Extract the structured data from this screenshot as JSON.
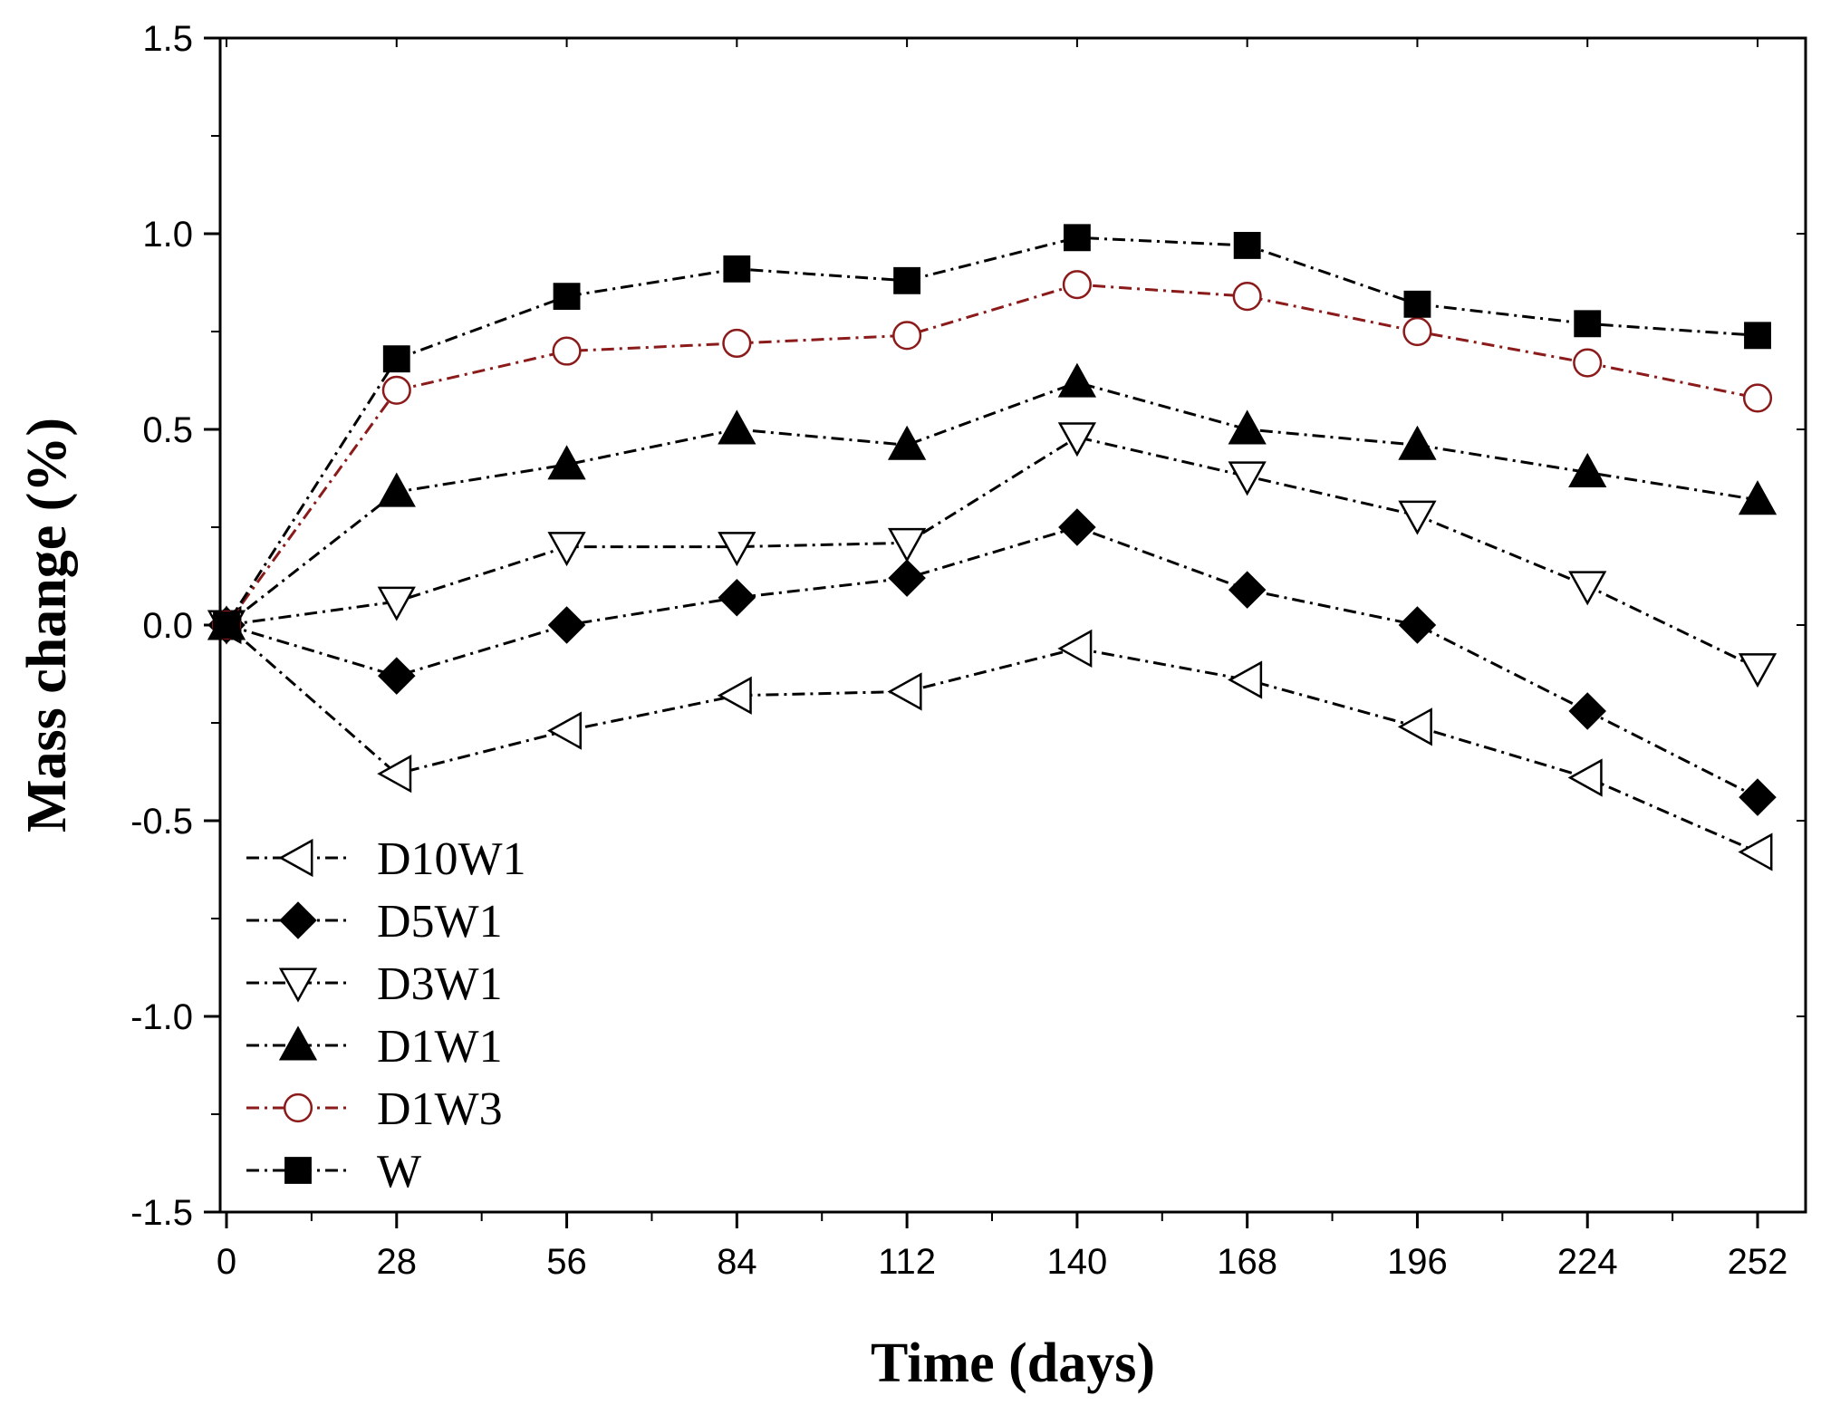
{
  "chart_data": {
    "type": "line",
    "title": "",
    "xlabel": "Time (days)",
    "ylabel": "Mass change (%)",
    "xlim": [
      0,
      252
    ],
    "ylim": [
      -1.5,
      1.5
    ],
    "x": [
      0,
      28,
      56,
      84,
      112,
      140,
      168,
      196,
      224,
      252
    ],
    "xticks": [
      0,
      28,
      56,
      84,
      112,
      140,
      168,
      196,
      224,
      252
    ],
    "xtick_labels": [
      "0",
      "28",
      "56",
      "84",
      "112",
      "140",
      "168",
      "196",
      "224",
      "252"
    ],
    "yticks": [
      -1.5,
      -1.0,
      -0.5,
      0.0,
      0.5,
      1.0,
      1.5
    ],
    "ytick_labels": [
      "-1.5",
      "-1.0",
      "-0.5",
      "0.0",
      "0.5",
      "1.0",
      "1.5"
    ],
    "grid": false,
    "legend_position": "bottom-left",
    "series": [
      {
        "name": "D10W1",
        "marker": "triangle-left-open",
        "color": "#000000",
        "values": [
          0,
          -0.38,
          -0.27,
          -0.18,
          -0.17,
          -0.06,
          -0.14,
          -0.26,
          -0.39,
          -0.58
        ]
      },
      {
        "name": "D5W1",
        "marker": "diamond-filled",
        "color": "#000000",
        "values": [
          0,
          -0.13,
          0.0,
          0.07,
          0.12,
          0.25,
          0.09,
          0.0,
          -0.22,
          -0.44
        ]
      },
      {
        "name": "D3W1",
        "marker": "triangle-down-open",
        "color": "#000000",
        "values": [
          0,
          0.06,
          0.2,
          0.2,
          0.21,
          0.48,
          0.38,
          0.28,
          0.1,
          -0.11
        ]
      },
      {
        "name": "D1W1",
        "marker": "triangle-up-filled",
        "color": "#000000",
        "values": [
          0,
          0.34,
          0.41,
          0.5,
          0.46,
          0.62,
          0.5,
          0.46,
          0.39,
          0.32
        ]
      },
      {
        "name": "D1W3",
        "marker": "circle-open",
        "color": "#8b1a1a",
        "values": [
          0,
          0.6,
          0.7,
          0.72,
          0.74,
          0.87,
          0.84,
          0.75,
          0.67,
          0.58
        ]
      },
      {
        "name": "W",
        "marker": "square-filled",
        "color": "#000000",
        "values": [
          0,
          0.68,
          0.84,
          0.91,
          0.88,
          0.99,
          0.97,
          0.82,
          0.77,
          0.74
        ]
      }
    ]
  }
}
